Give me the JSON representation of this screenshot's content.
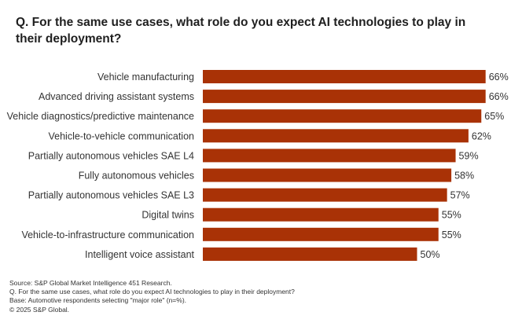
{
  "chart_data": {
    "type": "bar",
    "orientation": "horizontal",
    "title": "Q. For the same use cases, what role do you expect AI technologies to play in their deployment?",
    "categories": [
      "Vehicle manufacturing",
      "Advanced driving assistant systems",
      "Vehicle diagnostics/predictive maintenance",
      "Vehicle-to-vehicle communication",
      "Partially autonomous vehicles SAE L4",
      "Fully autonomous vehicles",
      "Partially autonomous vehicles SAE L3",
      "Digital twins",
      "Vehicle-to-infrastructure communication",
      "Intelligent voice assistant"
    ],
    "values": [
      66,
      66,
      65,
      62,
      59,
      58,
      57,
      55,
      55,
      50
    ],
    "value_labels": [
      "66%",
      "66%",
      "65%",
      "62%",
      "59%",
      "58%",
      "57%",
      "55%",
      "55%",
      "50%"
    ],
    "unit": "%",
    "bar_color": "#a93206",
    "grid": false,
    "legend": "none"
  },
  "footer": {
    "source": "Source: S&P Global Market Intelligence 451 Research.",
    "question": "Q. For the same use cases, what role do you expect AI technologies to play in their deployment?",
    "base": "Base: Automotive respondents selecting \"major role\" (n=%).",
    "copyright": "© 2025 S&P Global."
  }
}
